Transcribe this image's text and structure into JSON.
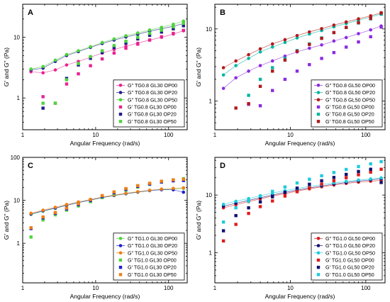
{
  "chart_data": [
    {
      "type": "scatter",
      "panel": "A",
      "xlabel": "Angular Frequency (rad/s)",
      "ylabel": "G' and G\" (Pa)",
      "xscale": "log",
      "yscale": "log",
      "xlim": [
        1,
        180
      ],
      "ylim": [
        0.3,
        35
      ],
      "xticks": [
        1,
        10,
        100
      ],
      "xticklabels": [
        "1",
        "10",
        "100"
      ],
      "yticks": [
        1,
        10
      ],
      "yticklabels": [
        "1",
        "10"
      ],
      "legend_position": "bottom-right",
      "x": [
        1.3,
        1.9,
        2.8,
        4.0,
        5.8,
        8.5,
        12.3,
        17.9,
        26.0,
        37.8,
        55.0,
        80.0,
        116.0,
        160.0
      ],
      "series": [
        {
          "name": "G\" TG0.8 GL30 OP00",
          "marker": "circle",
          "color": "#e8228f",
          "line": true,
          "values": [
            2.7,
            2.6,
            2.9,
            3.5,
            4.0,
            4.7,
            5.5,
            6.3,
            7.1,
            8.0,
            9.0,
            10.0,
            11.3,
            12.8
          ]
        },
        {
          "name": "G\" TG0.8 GL30 OP20",
          "marker": "circle",
          "color": "#1c1c8c",
          "line": true,
          "values": [
            2.9,
            3.1,
            4.0,
            5.0,
            5.8,
            6.8,
            7.9,
            9.0,
            10.1,
            11.2,
            12.6,
            13.8,
            15.2,
            16.8
          ]
        },
        {
          "name": "G\" TG0.8 GL30 OP50",
          "marker": "circle",
          "color": "#4ed43c",
          "line": true,
          "values": [
            3.0,
            3.3,
            4.2,
            5.2,
            6.0,
            7.0,
            8.2,
            9.4,
            10.6,
            11.8,
            13.2,
            14.6,
            16.4,
            18.5
          ]
        },
        {
          "name": "G' TG0.8 GL30 OP00",
          "marker": "square",
          "color": "#e8228f",
          "line": false,
          "values": [
            null,
            1.05,
            0.82,
            1.7,
            2.5,
            3.4,
            4.4,
            5.5,
            6.6,
            7.7,
            9.0,
            10.2,
            11.6,
            13.0
          ]
        },
        {
          "name": "G' TG0.8 GL30 OP20",
          "marker": "square",
          "color": "#1c1c8c",
          "line": false,
          "values": [
            null,
            0.68,
            null,
            2.1,
            3.5,
            4.5,
            5.6,
            6.8,
            8.0,
            9.4,
            10.8,
            12.2,
            13.8,
            15.5
          ]
        },
        {
          "name": "G' TG0.8 GL30 OP50",
          "marker": "square",
          "color": "#4ed43c",
          "line": false,
          "values": [
            null,
            0.82,
            0.82,
            2.0,
            3.7,
            4.8,
            6.0,
            7.3,
            8.6,
            10.0,
            11.6,
            13.1,
            14.9,
            17.0
          ]
        }
      ]
    },
    {
      "type": "scatter",
      "panel": "B",
      "xlabel": "Angular Frequency (rad/s)",
      "ylabel": "G' and G\" (Pa)",
      "xscale": "log",
      "yscale": "log",
      "xlim": [
        1,
        180
      ],
      "ylim": [
        0.4,
        22
      ],
      "xticks": [
        1,
        10,
        100
      ],
      "xticklabels": [
        "1",
        "10",
        "100"
      ],
      "yticks": [
        1,
        10
      ],
      "yticklabels": [
        "1",
        "10"
      ],
      "legend_position": "bottom-right",
      "x": [
        1.3,
        1.9,
        2.8,
        4.0,
        5.8,
        8.5,
        12.3,
        17.9,
        26.0,
        37.8,
        55.0,
        80.0,
        116.0,
        160.0
      ],
      "series": [
        {
          "name": "G\" TG0.8 GL50 OP00",
          "marker": "circle",
          "color": "#8a2be2",
          "line": true,
          "values": [
            1.5,
            2.1,
            2.6,
            3.1,
            3.6,
            4.2,
            4.8,
            5.4,
            6.0,
            6.8,
            7.6,
            8.6,
            9.7,
            11.0
          ]
        },
        {
          "name": "G\" TG0.8 GL50 OP20",
          "marker": "circle",
          "color": "#00b5a0",
          "line": true,
          "values": [
            2.3,
            3.1,
            3.9,
            4.8,
            5.6,
            6.5,
            7.5,
            8.5,
            9.5,
            10.7,
            11.9,
            13.2,
            14.6,
            16.2
          ]
        },
        {
          "name": "G\" TG0.8 GL50 OP50",
          "marker": "circle",
          "color": "#b01a1a",
          "line": true,
          "values": [
            2.9,
            3.6,
            4.4,
            5.3,
            6.2,
            7.1,
            8.1,
            9.1,
            10.1,
            11.3,
            12.5,
            13.8,
            15.2,
            16.8
          ]
        },
        {
          "name": "G' TG0.8 GL50 OP00",
          "marker": "square",
          "color": "#8a2be2",
          "line": false,
          "values": [
            null,
            null,
            0.9,
            0.86,
            1.4,
            2.0,
            2.6,
            3.2,
            3.9,
            4.7,
            5.6,
            6.6,
            7.8,
            10.6
          ]
        },
        {
          "name": "G' TG0.8 GL50 OP20",
          "marker": "square",
          "color": "#00b5a0",
          "line": false,
          "values": [
            null,
            null,
            1.2,
            2.0,
            2.9,
            3.9,
            5.0,
            6.2,
            7.5,
            8.9,
            10.5,
            12.1,
            13.8,
            16.0
          ]
        },
        {
          "name": "G' TG0.8 GL50 OP50",
          "marker": "square",
          "color": "#b01a1a",
          "line": false,
          "values": [
            null,
            0.8,
            0.92,
            1.6,
            2.6,
            3.7,
            4.9,
            6.1,
            7.4,
            8.9,
            10.5,
            12.2,
            14.0,
            16.6
          ]
        }
      ]
    },
    {
      "type": "scatter",
      "panel": "C",
      "xlabel": "Angular Frequency (rad/s)",
      "ylabel": "G' and G\" (Pa)",
      "xscale": "log",
      "yscale": "log",
      "xlim": [
        1,
        180
      ],
      "ylim": [
        0.12,
        100
      ],
      "xticks": [
        1,
        10,
        100
      ],
      "xticklabels": [
        "1",
        "10",
        "100"
      ],
      "yticks": [
        1,
        10,
        100
      ],
      "yticklabels": [
        "1",
        "10",
        "100"
      ],
      "legend_position": "bottom-right",
      "x": [
        1.3,
        1.9,
        2.8,
        4.0,
        5.8,
        8.5,
        12.3,
        17.9,
        26.0,
        37.8,
        55.0,
        80.0,
        116.0,
        160.0
      ],
      "series": [
        {
          "name": "G\" TG1.0 GL30 OP00",
          "marker": "circle",
          "color": "#4ed43c",
          "line": true,
          "values": [
            4.7,
            5.6,
            6.5,
            7.6,
            8.8,
            10.1,
            11.5,
            12.9,
            14.2,
            15.5,
            16.8,
            17.8,
            18.2,
            19.0
          ]
        },
        {
          "name": "G\" TG1.0 GL30 OP20",
          "marker": "circle",
          "color": "#1f1fcc",
          "line": true,
          "values": [
            4.8,
            5.7,
            6.6,
            7.7,
            8.9,
            10.2,
            11.6,
            13.0,
            14.3,
            15.6,
            16.9,
            17.7,
            17.6,
            15.5
          ]
        },
        {
          "name": "G\" TG1.0 GL30 OP50",
          "marker": "circle",
          "color": "#f07f12",
          "line": true,
          "values": [
            5.0,
            5.9,
            6.9,
            8.0,
            9.2,
            10.5,
            11.9,
            13.3,
            14.6,
            15.9,
            17.2,
            18.3,
            19.0,
            19.6
          ]
        },
        {
          "name": "G' TG1.0 GL30 OP00",
          "marker": "square",
          "color": "#4ed43c",
          "line": false,
          "values": [
            1.4,
            3.5,
            4.6,
            5.9,
            7.4,
            9.3,
            11.6,
            14.3,
            17.2,
            20.4,
            23.5,
            26.5,
            28.8,
            32.0
          ]
        },
        {
          "name": "G' TG1.0 GL30 OP20",
          "marker": "square",
          "color": "#1f1fcc",
          "line": false,
          "values": [
            2.2,
            3.9,
            5.0,
            6.3,
            7.9,
            9.9,
            12.3,
            15.0,
            18.0,
            21.1,
            24.0,
            26.8,
            28.5,
            29.0
          ]
        },
        {
          "name": "G' TG1.0 GL30 OP50",
          "marker": "square",
          "color": "#f07f12",
          "line": false,
          "values": [
            2.3,
            4.1,
            5.2,
            6.6,
            8.3,
            10.4,
            12.9,
            15.7,
            18.8,
            22.0,
            25.0,
            27.9,
            30.0,
            31.0
          ]
        }
      ]
    },
    {
      "type": "scatter",
      "panel": "D",
      "xlabel": "Angular Frequency (rad/s)",
      "ylabel": "G' and G\" (Pa)",
      "xscale": "log",
      "yscale": "log",
      "xlim": [
        1,
        180
      ],
      "ylim": [
        0.3,
        45
      ],
      "xticks": [
        1,
        10,
        100
      ],
      "xticklabels": [
        "1",
        "10",
        "100"
      ],
      "yticks": [
        1,
        10
      ],
      "yticklabels": [
        "1",
        "10"
      ],
      "legend_position": "bottom-right",
      "x": [
        1.3,
        1.9,
        2.8,
        4.0,
        5.8,
        8.5,
        12.3,
        17.9,
        26.0,
        37.8,
        55.0,
        80.0,
        116.0,
        160.0
      ],
      "series": [
        {
          "name": "G\" TG1.0 GL50 OP00",
          "marker": "circle",
          "color": "#e01b1b",
          "line": true,
          "values": [
            6.0,
            6.8,
            7.7,
            8.6,
            9.6,
            10.6,
            11.7,
            12.8,
            13.9,
            14.9,
            15.9,
            16.7,
            17.4,
            18.0
          ]
        },
        {
          "name": "G\" TG1.0 GL50 OP20",
          "marker": "circle",
          "color": "#101070",
          "line": true,
          "values": [
            6.4,
            7.2,
            8.1,
            9.0,
            10.0,
            11.1,
            12.2,
            13.3,
            14.4,
            15.5,
            16.5,
            17.5,
            18.3,
            19.2
          ]
        },
        {
          "name": "G\" TG1.0 GL50 OP50",
          "marker": "circle",
          "color": "#1ecbdc",
          "line": true,
          "values": [
            6.9,
            7.8,
            8.7,
            9.7,
            10.8,
            11.9,
            13.0,
            14.1,
            15.2,
            16.3,
            17.3,
            18.2,
            19.0,
            19.9
          ]
        },
        {
          "name": "G' TG1.0 GL50 OP00",
          "marker": "square",
          "color": "#e01b1b",
          "line": false,
          "values": [
            1.6,
            3.1,
            4.8,
            6.3,
            7.9,
            9.6,
            11.4,
            13.4,
            15.5,
            17.7,
            20.0,
            22.5,
            25.0,
            28.0
          ]
        },
        {
          "name": "G' TG1.0 GL50 OP20",
          "marker": "square",
          "color": "#101070",
          "line": false,
          "values": [
            2.4,
            4.4,
            6.0,
            7.6,
            9.3,
            11.2,
            13.2,
            15.4,
            17.7,
            20.2,
            22.8,
            25.6,
            28.0,
            16.5
          ]
        },
        {
          "name": "G' TG1.0 GL50 OP50",
          "marker": "square",
          "color": "#1ecbdc",
          "line": false,
          "values": [
            3.4,
            6.0,
            7.8,
            9.6,
            11.6,
            13.8,
            16.2,
            18.8,
            21.6,
            24.6,
            27.8,
            31.2,
            34.8,
            38.0
          ]
        }
      ]
    }
  ]
}
